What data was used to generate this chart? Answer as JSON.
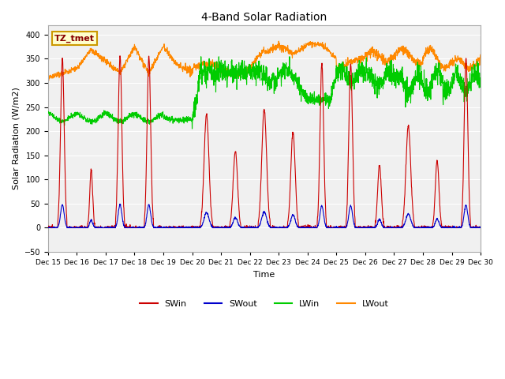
{
  "title": "4-Band Solar Radiation",
  "ylabel": "Solar Radiation (W/m2)",
  "xlabel": "Time",
  "annotation": "TZ_tmet",
  "ylim": [
    -50,
    420
  ],
  "xtick_labels": [
    "Dec 15",
    "Dec 16",
    "Dec 17",
    "Dec 18",
    "Dec 19",
    "Dec 20",
    "Dec 21",
    "Dec 22",
    "Dec 23",
    "Dec 24",
    "Dec 25",
    "Dec 26",
    "Dec 27",
    "Dec 28",
    "Dec 29",
    "Dec 30"
  ],
  "legend_entries": [
    "SWin",
    "SWout",
    "LWin",
    "LWout"
  ],
  "line_colors": {
    "SWin": "#cc0000",
    "SWout": "#0000cc",
    "LWin": "#00cc00",
    "LWout": "#ff8800"
  },
  "plot_bg_color": "#f0f0f0",
  "grid_color": "#ffffff",
  "annotation_facecolor": "#ffffcc",
  "annotation_edgecolor": "#cc9900",
  "annotation_textcolor": "#880000"
}
